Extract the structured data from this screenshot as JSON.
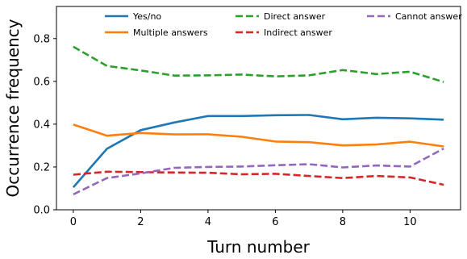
{
  "chart_data": {
    "type": "line",
    "xlabel": "Turn number",
    "ylabel": "Occurrence frequency",
    "xlim": [
      -0.5,
      11.5
    ],
    "ylim": [
      0.0,
      0.95
    ],
    "xticks": [
      0,
      2,
      4,
      6,
      8,
      10
    ],
    "yticks": [
      0.0,
      0.2,
      0.4,
      0.6,
      0.8
    ],
    "xtick_labels": [
      "0",
      "2",
      "4",
      "6",
      "8",
      "10"
    ],
    "ytick_labels": [
      "0.0",
      "0.2",
      "0.4",
      "0.6",
      "0.8"
    ],
    "grid": false,
    "legend_position": "top",
    "x": [
      0,
      1,
      2,
      3,
      4,
      5,
      6,
      7,
      8,
      9,
      10,
      11
    ],
    "series": [
      {
        "name": "Yes/no",
        "color": "#1f77b4",
        "dash": "solid",
        "values": [
          0.105,
          0.285,
          0.372,
          0.408,
          0.438,
          0.438,
          0.442,
          0.443,
          0.423,
          0.43,
          0.427,
          0.421
        ]
      },
      {
        "name": "Multiple answers",
        "color": "#ff7f0e",
        "dash": "solid",
        "values": [
          0.398,
          0.346,
          0.359,
          0.352,
          0.353,
          0.341,
          0.319,
          0.316,
          0.301,
          0.305,
          0.318,
          0.296
        ]
      },
      {
        "name": "Direct answer",
        "color": "#2ca02c",
        "dash": "dashed",
        "values": [
          0.762,
          0.672,
          0.651,
          0.627,
          0.628,
          0.632,
          0.623,
          0.628,
          0.653,
          0.634,
          0.645,
          0.597
        ]
      },
      {
        "name": "Indirect answer",
        "color": "#d62728",
        "dash": "dashed",
        "values": [
          0.164,
          0.178,
          0.176,
          0.174,
          0.173,
          0.166,
          0.168,
          0.158,
          0.148,
          0.158,
          0.151,
          0.117
        ]
      },
      {
        "name": "Cannot answer",
        "color": "#9467bd",
        "dash": "dashed",
        "values": [
          0.072,
          0.148,
          0.17,
          0.196,
          0.2,
          0.202,
          0.208,
          0.213,
          0.198,
          0.207,
          0.202,
          0.286
        ]
      }
    ]
  }
}
